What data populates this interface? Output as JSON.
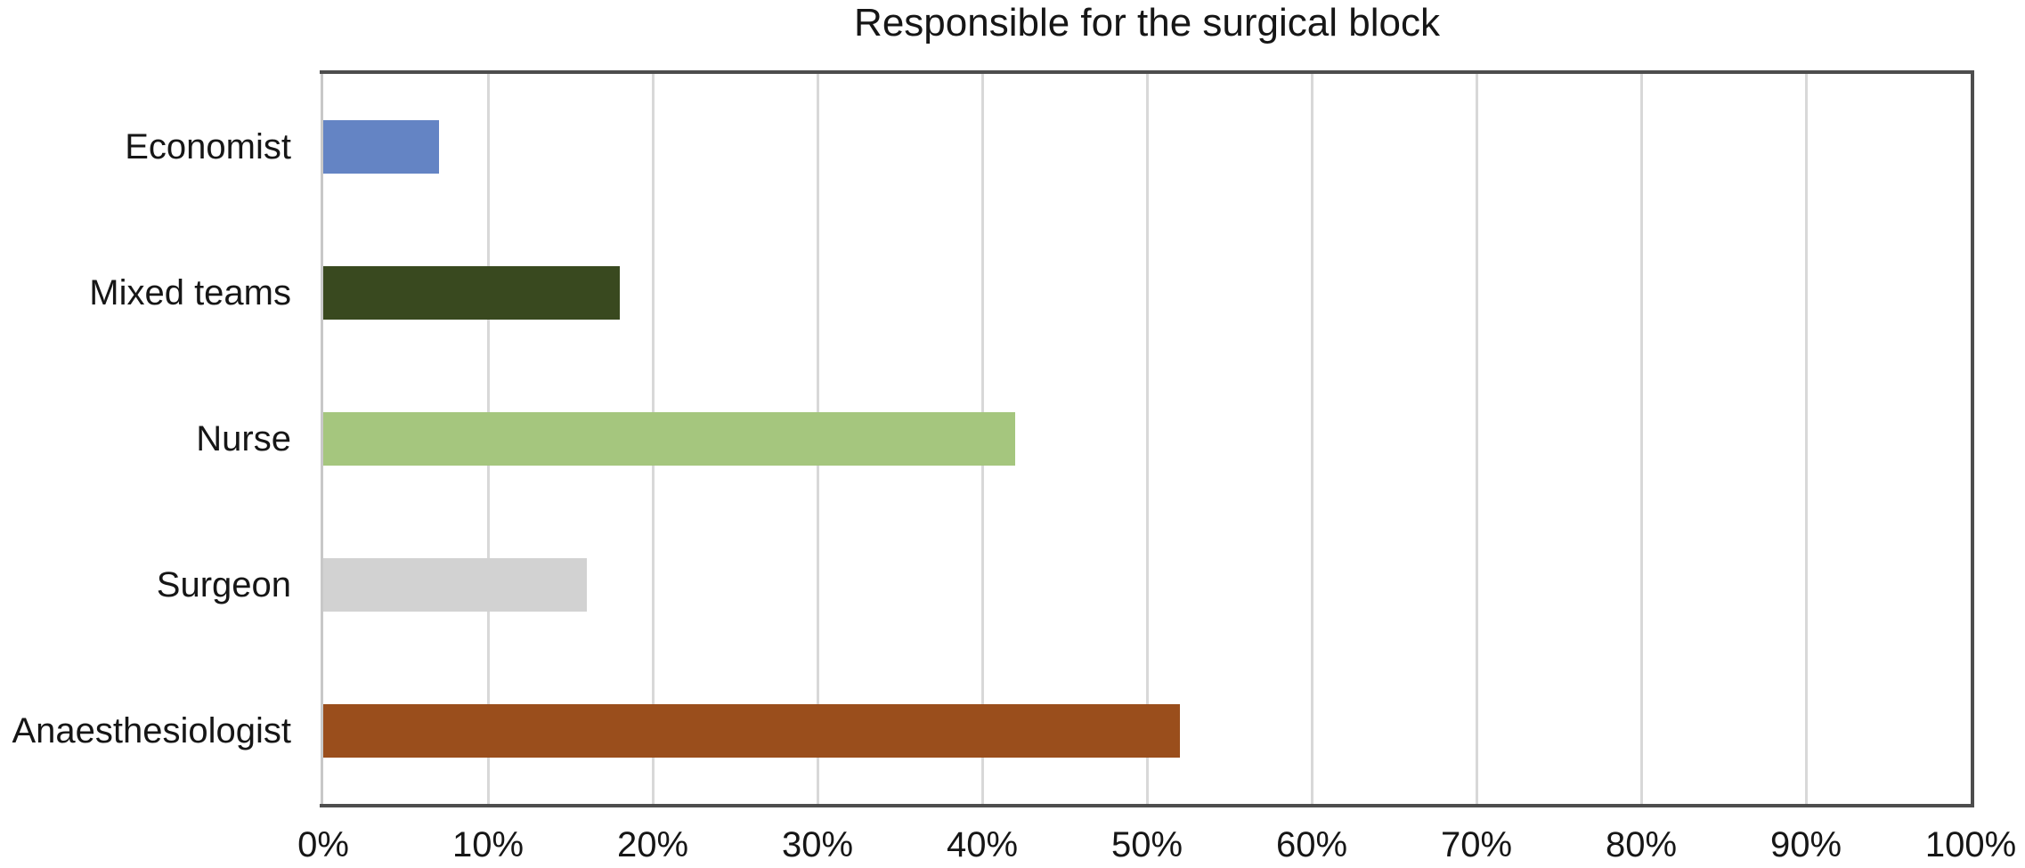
{
  "chart_data": {
    "type": "bar",
    "orientation": "horizontal",
    "title": "Responsible for the surgical block",
    "categories": [
      "Economist",
      "Mixed teams",
      "Nurse",
      "Surgeon",
      "Anaesthesiologist"
    ],
    "values": [
      7,
      18,
      42,
      16,
      52
    ],
    "value_unit": "%",
    "xlabel": "",
    "ylabel": "",
    "xlim": [
      0,
      100
    ],
    "x_tick_labels": [
      "0%",
      "10%",
      "20%",
      "30%",
      "40%",
      "50%",
      "60%",
      "70%",
      "80%",
      "90%",
      "100%"
    ],
    "grid": {
      "vertical": true,
      "horizontal": false
    },
    "legend": "none",
    "bar_colors": [
      "#6484c4",
      "#39491f",
      "#a5c67e",
      "#d2d2d2",
      "#9a4e1c"
    ],
    "style_colors": {
      "plot_border": "#4d4d4d",
      "zero_axis_line": "#c8c8c8",
      "gridline": "#d8d8d8",
      "text": "#161616",
      "background": "#ffffff"
    }
  }
}
